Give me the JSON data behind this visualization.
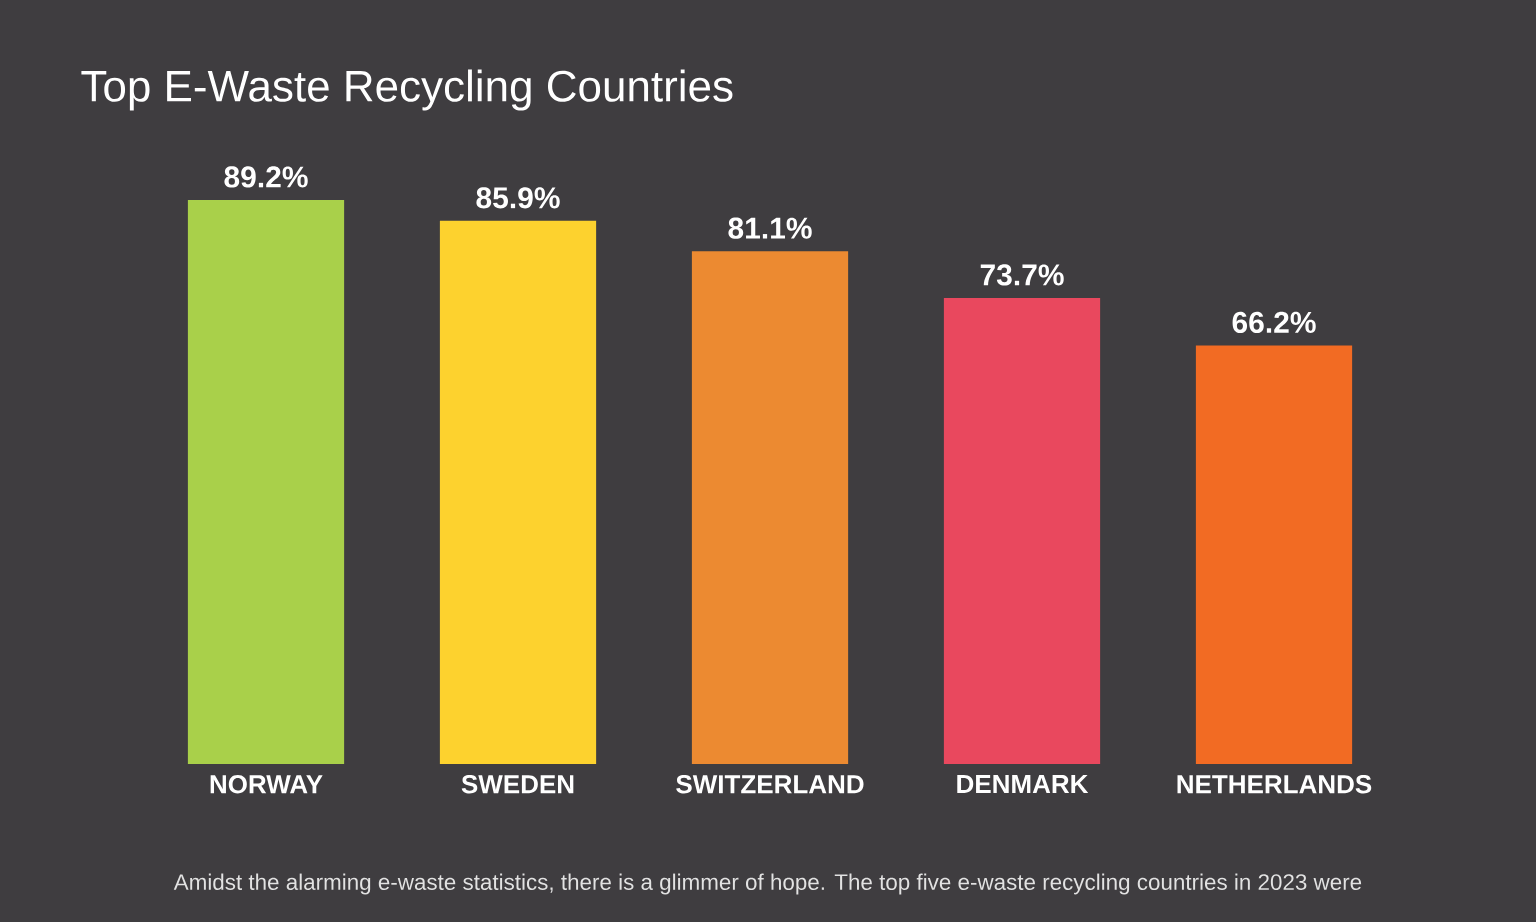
{
  "chart_data": {
    "type": "bar",
    "title": "Top E-Waste Recycling Countries",
    "categories": [
      "NORWAY",
      "SWEDEN",
      "SWITZERLAND",
      "DENMARK",
      "NETHERLANDS"
    ],
    "values": [
      89.2,
      85.9,
      81.1,
      73.7,
      66.2
    ],
    "value_labels": [
      "89.2%",
      "85.9%",
      "81.1%",
      "73.7%",
      "66.2%"
    ],
    "colors": [
      "#a9d04a",
      "#fdd22e",
      "#ec8a31",
      "#e9485e",
      "#f26b23"
    ],
    "tick_labels": "x",
    "annotations": [
      "Amidst the alarming e-waste statistics, there is a glimmer of hope. The top five e-waste recycling countries in 2023 were"
    ]
  }
}
